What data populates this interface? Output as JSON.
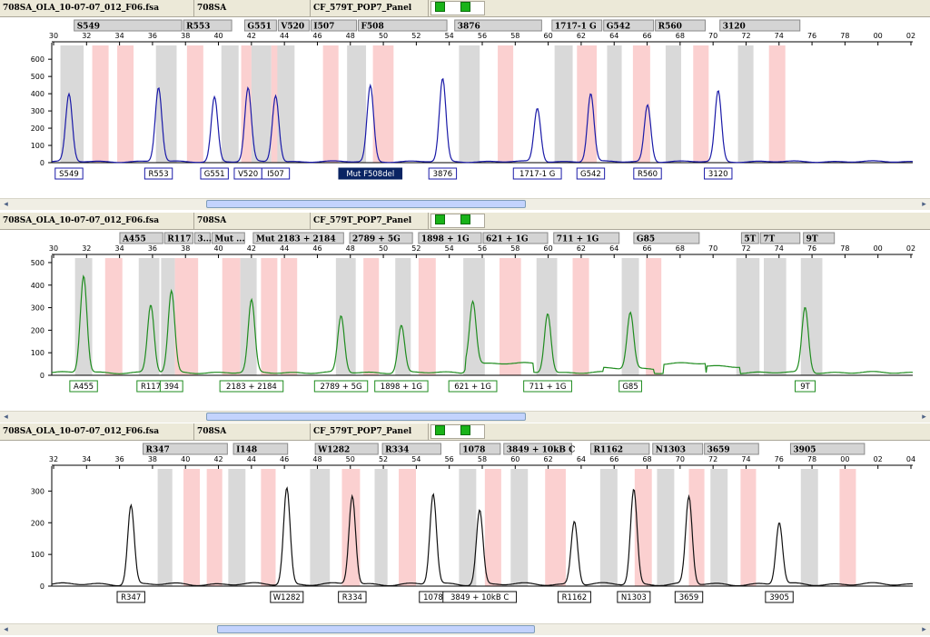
{
  "panels": [
    {
      "file": "708SA_OLA_10-07-07_012_F06.fsa",
      "sample": "708SA",
      "panel_name": "CF_579T_POP7_Panel",
      "color": "#1a1aa8",
      "y_ticks": [
        0,
        100,
        200,
        300,
        400,
        500,
        600
      ],
      "y_max": 680,
      "x_ticks": [
        "30",
        "32",
        "34",
        "36",
        "38",
        "40",
        "42",
        "44",
        "46",
        "48",
        "50",
        "52",
        "54",
        "56",
        "58",
        "60",
        "62",
        "64",
        "66",
        "68",
        "70",
        "72",
        "74",
        "76",
        "78",
        "00",
        "02"
      ],
      "markers": [
        {
          "label": "S549",
          "x1": 0.025,
          "x2": 0.152
        },
        {
          "label": "R553",
          "x1": 0.152,
          "x2": 0.21
        },
        {
          "label": "G551",
          "x1": 0.223,
          "x2": 0.262
        },
        {
          "label": "V520",
          "x1": 0.262,
          "x2": 0.3
        },
        {
          "label": "I507",
          "x1": 0.3,
          "x2": 0.355
        },
        {
          "label": "F508",
          "x1": 0.355,
          "x2": 0.46
        },
        {
          "label": "3876",
          "x1": 0.467,
          "x2": 0.57
        },
        {
          "label": "1717-1 G",
          "x1": 0.58,
          "x2": 0.64
        },
        {
          "label": "G542",
          "x1": 0.64,
          "x2": 0.7
        },
        {
          "label": "R560",
          "x1": 0.7,
          "x2": 0.76
        },
        {
          "label": "3120",
          "x1": 0.775,
          "x2": 0.87
        }
      ],
      "bins": [
        {
          "x1": 0.01,
          "x2": 0.037,
          "c": "g"
        },
        {
          "x1": 0.047,
          "x2": 0.066,
          "c": "r"
        },
        {
          "x1": 0.076,
          "x2": 0.095,
          "c": "r"
        },
        {
          "x1": 0.121,
          "x2": 0.145,
          "c": "g"
        },
        {
          "x1": 0.157,
          "x2": 0.176,
          "c": "r"
        },
        {
          "x1": 0.197,
          "x2": 0.217,
          "c": "g"
        },
        {
          "x1": 0.22,
          "x2": 0.232,
          "c": "r"
        },
        {
          "x1": 0.232,
          "x2": 0.255,
          "c": "g"
        },
        {
          "x1": 0.255,
          "x2": 0.272,
          "c": "r"
        },
        {
          "x1": 0.262,
          "x2": 0.282,
          "c": "g"
        },
        {
          "x1": 0.315,
          "x2": 0.333,
          "c": "r"
        },
        {
          "x1": 0.343,
          "x2": 0.365,
          "c": "g"
        },
        {
          "x1": 0.373,
          "x2": 0.397,
          "c": "r"
        },
        {
          "x1": 0.473,
          "x2": 0.497,
          "c": "g"
        },
        {
          "x1": 0.518,
          "x2": 0.536,
          "c": "r"
        },
        {
          "x1": 0.584,
          "x2": 0.605,
          "c": "g"
        },
        {
          "x1": 0.61,
          "x2": 0.633,
          "c": "r"
        },
        {
          "x1": 0.645,
          "x2": 0.662,
          "c": "g"
        },
        {
          "x1": 0.675,
          "x2": 0.695,
          "c": "r"
        },
        {
          "x1": 0.713,
          "x2": 0.731,
          "c": "g"
        },
        {
          "x1": 0.745,
          "x2": 0.763,
          "c": "r"
        },
        {
          "x1": 0.797,
          "x2": 0.815,
          "c": "g"
        },
        {
          "x1": 0.833,
          "x2": 0.852,
          "c": "r"
        }
      ],
      "peaks": [
        {
          "x": 0.02,
          "h": 390,
          "label": "S549"
        },
        {
          "x": 0.124,
          "h": 430,
          "label": "R553"
        },
        {
          "x": 0.189,
          "h": 375,
          "label": "G551"
        },
        {
          "x": 0.228,
          "h": 425,
          "label": "V520"
        },
        {
          "x": 0.26,
          "h": 385,
          "label": "I507"
        },
        {
          "x": 0.37,
          "h": 440,
          "label": "Mut F508del",
          "sel": true
        },
        {
          "x": 0.454,
          "h": 480,
          "label": "3876"
        },
        {
          "x": 0.564,
          "h": 310,
          "label": "1717-1 G"
        },
        {
          "x": 0.626,
          "h": 395,
          "label": "G542"
        },
        {
          "x": 0.692,
          "h": 330,
          "label": "R560"
        },
        {
          "x": 0.774,
          "h": 410,
          "label": "3120"
        }
      ],
      "scroll": {
        "x1": 0.222,
        "x2": 0.565
      }
    },
    {
      "file": "708SA_OLA_10-07-07_012_F06.fsa",
      "sample": "708SA",
      "panel_name": "CF_579T_POP7_Panel",
      "color": "#1f8c1f",
      "y_ticks": [
        0,
        100,
        200,
        300,
        400,
        500
      ],
      "y_max": 520,
      "x_ticks": [
        "30",
        "32",
        "34",
        "36",
        "38",
        "40",
        "42",
        "44",
        "46",
        "48",
        "50",
        "52",
        "54",
        "56",
        "58",
        "60",
        "62",
        "64",
        "66",
        "68",
        "70",
        "72",
        "74",
        "76",
        "78",
        "00",
        "02"
      ],
      "markers": [
        {
          "label": "A455",
          "x1": 0.078,
          "x2": 0.13
        },
        {
          "label": "R117",
          "x1": 0.13,
          "x2": 0.165
        },
        {
          "label": "3...",
          "x1": 0.165,
          "x2": 0.185
        },
        {
          "label": "Mut ...",
          "x1": 0.185,
          "x2": 0.225
        },
        {
          "label": "Mut 2183 + 2184",
          "x1": 0.233,
          "x2": 0.34
        },
        {
          "label": "2789 + 5G",
          "x1": 0.345,
          "x2": 0.42
        },
        {
          "label": "1898 + 1G",
          "x1": 0.425,
          "x2": 0.5
        },
        {
          "label": "621 + 1G",
          "x1": 0.5,
          "x2": 0.577
        },
        {
          "label": "711 + 1G",
          "x1": 0.582,
          "x2": 0.66
        },
        {
          "label": "G85",
          "x1": 0.675,
          "x2": 0.753
        },
        {
          "label": "5T",
          "x1": 0.8,
          "x2": 0.822
        },
        {
          "label": "7T",
          "x1": 0.822,
          "x2": 0.87
        },
        {
          "label": "9T",
          "x1": 0.872,
          "x2": 0.91
        }
      ],
      "bins": [
        {
          "x1": 0.027,
          "x2": 0.047,
          "c": "g"
        },
        {
          "x1": 0.062,
          "x2": 0.082,
          "c": "r"
        },
        {
          "x1": 0.101,
          "x2": 0.125,
          "c": "g"
        },
        {
          "x1": 0.127,
          "x2": 0.143,
          "c": "g"
        },
        {
          "x1": 0.143,
          "x2": 0.17,
          "c": "r"
        },
        {
          "x1": 0.198,
          "x2": 0.219,
          "c": "r"
        },
        {
          "x1": 0.219,
          "x2": 0.238,
          "c": "g"
        },
        {
          "x1": 0.243,
          "x2": 0.262,
          "c": "r"
        },
        {
          "x1": 0.266,
          "x2": 0.285,
          "c": "r"
        },
        {
          "x1": 0.33,
          "x2": 0.353,
          "c": "g"
        },
        {
          "x1": 0.362,
          "x2": 0.38,
          "c": "r"
        },
        {
          "x1": 0.399,
          "x2": 0.417,
          "c": "g"
        },
        {
          "x1": 0.426,
          "x2": 0.446,
          "c": "r"
        },
        {
          "x1": 0.478,
          "x2": 0.503,
          "c": "g"
        },
        {
          "x1": 0.52,
          "x2": 0.545,
          "c": "r"
        },
        {
          "x1": 0.563,
          "x2": 0.587,
          "c": "g"
        },
        {
          "x1": 0.605,
          "x2": 0.624,
          "c": "r"
        },
        {
          "x1": 0.662,
          "x2": 0.682,
          "c": "g"
        },
        {
          "x1": 0.69,
          "x2": 0.708,
          "c": "r"
        },
        {
          "x1": 0.795,
          "x2": 0.822,
          "c": "g"
        },
        {
          "x1": 0.827,
          "x2": 0.853,
          "c": "g"
        },
        {
          "x1": 0.87,
          "x2": 0.895,
          "c": "g"
        }
      ],
      "peaks": [
        {
          "x": 0.037,
          "h": 430,
          "label": "A455"
        },
        {
          "x": 0.115,
          "h": 300,
          "label": "R117"
        },
        {
          "x": 0.139,
          "h": 360,
          "label": "394"
        },
        {
          "x": 0.232,
          "h": 320,
          "label": "2183 + 2184"
        },
        {
          "x": 0.336,
          "h": 250,
          "label": "2789 + 5G"
        },
        {
          "x": 0.406,
          "h": 210,
          "label": "1898 + 1G"
        },
        {
          "x": 0.489,
          "h": 280,
          "label": "621 + 1G"
        },
        {
          "x": 0.576,
          "h": 265,
          "label": "711 + 1G"
        },
        {
          "x": 0.672,
          "h": 250,
          "label": "G85"
        },
        {
          "x": 0.875,
          "h": 290,
          "label": "9T"
        }
      ],
      "scroll": {
        "x1": 0.222,
        "x2": 0.565
      }
    },
    {
      "file": "708SA_OLA_10-07-07_012_F06.fsa",
      "sample": "708SA",
      "panel_name": "CF_579T_POP7_Panel",
      "color": "#111111",
      "y_ticks": [
        0,
        100,
        200,
        300
      ],
      "y_max": 370,
      "x_ticks": [
        "32",
        "34",
        "36",
        "38",
        "40",
        "42",
        "44",
        "46",
        "48",
        "50",
        "52",
        "54",
        "56",
        "58",
        "60",
        "62",
        "64",
        "66",
        "68",
        "70",
        "72",
        "74",
        "76",
        "78",
        "00",
        "02",
        "04"
      ],
      "markers": [
        {
          "label": "R347",
          "x1": 0.105,
          "x2": 0.205
        },
        {
          "label": "I148",
          "x1": 0.21,
          "x2": 0.275
        },
        {
          "label": "W1282",
          "x1": 0.305,
          "x2": 0.38
        },
        {
          "label": "R334",
          "x1": 0.383,
          "x2": 0.453
        },
        {
          "label": "1078",
          "x1": 0.473,
          "x2": 0.522
        },
        {
          "label": "3849 + 10kB C",
          "x1": 0.524,
          "x2": 0.605
        },
        {
          "label": "R1162",
          "x1": 0.625,
          "x2": 0.695
        },
        {
          "label": "N1303",
          "x1": 0.697,
          "x2": 0.757
        },
        {
          "label": "3659",
          "x1": 0.757,
          "x2": 0.822
        },
        {
          "label": "3905",
          "x1": 0.857,
          "x2": 0.945
        }
      ],
      "bins": [
        {
          "x1": 0.123,
          "x2": 0.14,
          "c": "g"
        },
        {
          "x1": 0.153,
          "x2": 0.172,
          "c": "r"
        },
        {
          "x1": 0.18,
          "x2": 0.198,
          "c": "r"
        },
        {
          "x1": 0.205,
          "x2": 0.225,
          "c": "g"
        },
        {
          "x1": 0.243,
          "x2": 0.26,
          "c": "r"
        },
        {
          "x1": 0.3,
          "x2": 0.323,
          "c": "g"
        },
        {
          "x1": 0.337,
          "x2": 0.358,
          "c": "r"
        },
        {
          "x1": 0.375,
          "x2": 0.39,
          "c": "g"
        },
        {
          "x1": 0.403,
          "x2": 0.423,
          "c": "r"
        },
        {
          "x1": 0.473,
          "x2": 0.493,
          "c": "g"
        },
        {
          "x1": 0.503,
          "x2": 0.522,
          "c": "r"
        },
        {
          "x1": 0.533,
          "x2": 0.553,
          "c": "g"
        },
        {
          "x1": 0.573,
          "x2": 0.597,
          "c": "r"
        },
        {
          "x1": 0.637,
          "x2": 0.657,
          "c": "g"
        },
        {
          "x1": 0.677,
          "x2": 0.697,
          "c": "r"
        },
        {
          "x1": 0.703,
          "x2": 0.723,
          "c": "g"
        },
        {
          "x1": 0.74,
          "x2": 0.758,
          "c": "r"
        },
        {
          "x1": 0.765,
          "x2": 0.785,
          "c": "g"
        },
        {
          "x1": 0.8,
          "x2": 0.818,
          "c": "r"
        },
        {
          "x1": 0.87,
          "x2": 0.89,
          "c": "g"
        },
        {
          "x1": 0.915,
          "x2": 0.934,
          "c": "r"
        }
      ],
      "peaks": [
        {
          "x": 0.092,
          "h": 250,
          "label": "R347"
        },
        {
          "x": 0.273,
          "h": 305,
          "label": "W1282"
        },
        {
          "x": 0.349,
          "h": 280,
          "label": "R334"
        },
        {
          "x": 0.443,
          "h": 285,
          "label": "1078"
        },
        {
          "x": 0.497,
          "h": 235,
          "label": "3849 + 10kB C"
        },
        {
          "x": 0.607,
          "h": 200,
          "label": "R1162"
        },
        {
          "x": 0.676,
          "h": 300,
          "label": "N1303"
        },
        {
          "x": 0.74,
          "h": 275,
          "label": "3659"
        },
        {
          "x": 0.845,
          "h": 195,
          "label": "3905"
        }
      ],
      "scroll": {
        "x1": 0.233,
        "x2": 0.575
      }
    }
  ]
}
